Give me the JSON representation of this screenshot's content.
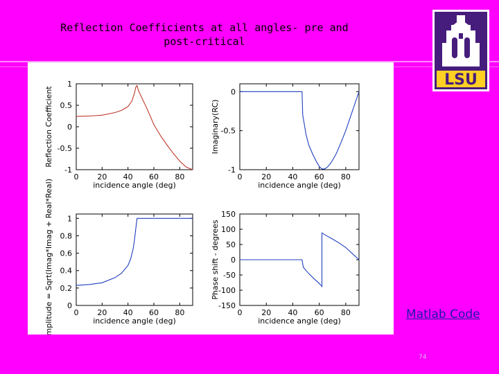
{
  "slide": {
    "title": "Reflection Coefficients at all angles- pre and post-critical",
    "matlab_link": "Matlab Code",
    "page_number": "74",
    "logo_text": "LSU",
    "colors": {
      "background": "#ff00ff",
      "logo_purple": "#461d7c",
      "logo_gold": "#fdd023",
      "link": "#1a1aa6"
    }
  },
  "chart_data": [
    {
      "type": "line",
      "ylabel": "Reflection Coefficient",
      "xlabel": "incidence angle (deg)",
      "xlim": [
        0,
        90
      ],
      "ylim": [
        -1,
        1
      ],
      "xticks": [
        "0",
        "20",
        "40",
        "60",
        "80"
      ],
      "yticks": [
        "1",
        "0.5",
        "0",
        "-0.5",
        "-1"
      ],
      "ytick_values": [
        1,
        0.5,
        0,
        -0.5,
        -1
      ],
      "xtick_values": [
        0,
        20,
        40,
        60,
        80
      ],
      "line_color": "#c0392b",
      "series": [
        {
          "x": [
            0,
            10,
            20,
            30,
            35,
            40,
            43,
            45,
            46,
            47,
            48,
            50,
            55,
            60,
            65,
            70,
            75,
            80,
            85,
            90
          ],
          "values": [
            0.24,
            0.25,
            0.27,
            0.33,
            0.38,
            0.47,
            0.6,
            0.78,
            0.92,
            0.96,
            0.85,
            0.72,
            0.4,
            0.05,
            -0.2,
            -0.42,
            -0.62,
            -0.8,
            -0.94,
            -1.0
          ]
        }
      ]
    },
    {
      "type": "line",
      "ylabel": "Imaginary(RC)",
      "xlabel": "incidence angle (deg)",
      "xlim": [
        0,
        90
      ],
      "ylim": [
        -1,
        0.1
      ],
      "xticks": [
        "0",
        "20",
        "40",
        "60",
        "80"
      ],
      "yticks": [
        "0",
        "-0.5",
        "-1"
      ],
      "ytick_values": [
        0,
        -0.5,
        -1
      ],
      "xtick_values": [
        0,
        20,
        40,
        60,
        80
      ],
      "line_color": "#1f3fbf",
      "series": [
        {
          "x": [
            0,
            20,
            40,
            47,
            47.5,
            50,
            52,
            55,
            58,
            60,
            62,
            64,
            66,
            68,
            70,
            73,
            76,
            80,
            84,
            88,
            90
          ],
          "values": [
            0,
            0,
            0,
            0,
            -0.3,
            -0.55,
            -0.68,
            -0.8,
            -0.9,
            -0.96,
            -0.99,
            -0.99,
            -0.97,
            -0.93,
            -0.88,
            -0.79,
            -0.67,
            -0.5,
            -0.3,
            -0.1,
            0.0
          ]
        }
      ]
    },
    {
      "type": "line",
      "ylabel": "Amplitude = Sqrt(Imag*Imag + Real*Real)",
      "xlabel": "incidence angle (deg)",
      "xlim": [
        0,
        90
      ],
      "ylim": [
        0,
        1.05
      ],
      "xticks": [
        "0",
        "20",
        "40",
        "60",
        "80"
      ],
      "yticks": [
        "1",
        "0.8",
        "0.6",
        "0.4",
        "0.2",
        "0"
      ],
      "ytick_values": [
        1,
        0.8,
        0.6,
        0.4,
        0.2,
        0
      ],
      "xtick_values": [
        0,
        20,
        40,
        60,
        80
      ],
      "line_color": "#1f3fbf",
      "series": [
        {
          "x": [
            0,
            10,
            20,
            30,
            35,
            40,
            42,
            44,
            45,
            46,
            47,
            50,
            60,
            70,
            80,
            90
          ],
          "values": [
            0.23,
            0.24,
            0.26,
            0.32,
            0.37,
            0.46,
            0.53,
            0.65,
            0.75,
            0.88,
            1.0,
            1.0,
            1.0,
            1.0,
            1.0,
            1.0
          ]
        }
      ]
    },
    {
      "type": "line",
      "ylabel": "Phase shift - degrees",
      "xlabel": "incidence angle (deg)",
      "xlim": [
        0,
        90
      ],
      "ylim": [
        -150,
        150
      ],
      "xticks": [
        "0",
        "20",
        "40",
        "60",
        "80"
      ],
      "yticks": [
        "150",
        "100",
        "50",
        "0",
        "-50",
        "-100",
        "-150"
      ],
      "ytick_values": [
        150,
        100,
        50,
        0,
        -50,
        -100,
        -150
      ],
      "xtick_values": [
        0,
        20,
        40,
        60,
        80
      ],
      "line_color": "#1f3fbf",
      "series": [
        {
          "x": [
            0,
            20,
            40,
            47,
            48,
            52,
            56,
            60,
            62,
            62.01,
            65,
            70,
            75,
            80,
            85,
            90
          ],
          "values": [
            0,
            0,
            0,
            0,
            -25,
            -45,
            -62,
            -78,
            -88,
            88,
            80,
            68,
            55,
            40,
            20,
            0
          ]
        }
      ]
    }
  ]
}
